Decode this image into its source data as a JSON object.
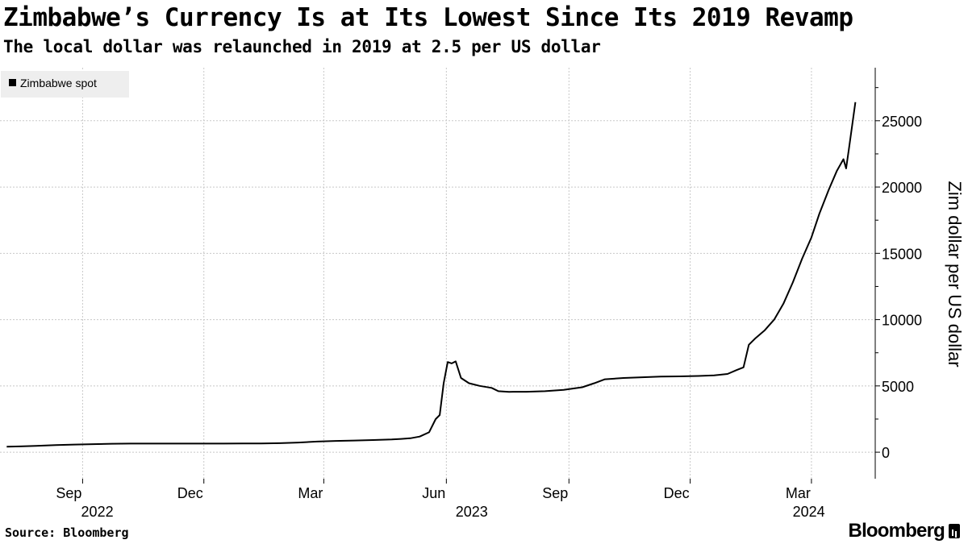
{
  "title": "Zimbabwe’s Currency Is at Its Lowest Since Its 2019 Revamp",
  "subtitle": "The local dollar was relaunched in 2019 at 2.5 per US dollar",
  "source": "Source: Bloomberg",
  "brand": "Bloomberg",
  "chart_data": {
    "type": "line",
    "ylabel": "Zim dollar per US dollar",
    "ylim": [
      -2000,
      29000
    ],
    "yticks": [
      0,
      5000,
      10000,
      15000,
      20000,
      25000
    ],
    "grid": true,
    "legend_position": "top-left",
    "x_tick_labels": [
      {
        "date": "2022-09-01",
        "label": "Sep"
      },
      {
        "date": "2022-12-01",
        "label": "Dec"
      },
      {
        "date": "2023-03-01",
        "label": "Mar"
      },
      {
        "date": "2023-06-01",
        "label": "Jun"
      },
      {
        "date": "2023-09-01",
        "label": "Sep"
      },
      {
        "date": "2023-12-01",
        "label": "Dec"
      },
      {
        "date": "2024-03-01",
        "label": "Mar"
      }
    ],
    "year_labels": [
      {
        "date": "2022-09-12",
        "label": "2022"
      },
      {
        "date": "2023-06-20",
        "label": "2023"
      },
      {
        "date": "2024-02-28",
        "label": "2024"
      }
    ],
    "series": [
      {
        "name": "Zimbabwe spot",
        "color": "#000000",
        "points": [
          [
            "2022-07-06",
            420
          ],
          [
            "2022-07-16",
            440
          ],
          [
            "2022-07-28",
            480
          ],
          [
            "2022-08-12",
            540
          ],
          [
            "2022-08-26",
            580
          ],
          [
            "2022-09-09",
            610
          ],
          [
            "2022-09-23",
            640
          ],
          [
            "2022-10-07",
            650
          ],
          [
            "2022-10-21",
            650
          ],
          [
            "2022-11-04",
            650
          ],
          [
            "2022-11-18",
            650
          ],
          [
            "2022-12-02",
            650
          ],
          [
            "2022-12-16",
            650
          ],
          [
            "2022-12-30",
            655
          ],
          [
            "2023-01-13",
            660
          ],
          [
            "2023-01-27",
            680
          ],
          [
            "2023-02-10",
            730
          ],
          [
            "2023-02-24",
            800
          ],
          [
            "2023-03-10",
            850
          ],
          [
            "2023-03-24",
            880
          ],
          [
            "2023-04-07",
            920
          ],
          [
            "2023-04-21",
            960
          ],
          [
            "2023-04-28",
            1000
          ],
          [
            "2023-05-05",
            1050
          ],
          [
            "2023-05-12",
            1180
          ],
          [
            "2023-05-19",
            1500
          ],
          [
            "2023-05-24",
            2500
          ],
          [
            "2023-05-27",
            2800
          ],
          [
            "2023-05-30",
            5200
          ],
          [
            "2023-06-02",
            6800
          ],
          [
            "2023-06-05",
            6700
          ],
          [
            "2023-06-08",
            6850
          ],
          [
            "2023-06-12",
            5600
          ],
          [
            "2023-06-18",
            5200
          ],
          [
            "2023-06-26",
            5000
          ],
          [
            "2023-07-05",
            4850
          ],
          [
            "2023-07-10",
            4600
          ],
          [
            "2023-07-18",
            4550
          ],
          [
            "2023-07-31",
            4560
          ],
          [
            "2023-08-14",
            4600
          ],
          [
            "2023-08-28",
            4700
          ],
          [
            "2023-09-11",
            4900
          ],
          [
            "2023-09-20",
            5200
          ],
          [
            "2023-09-28",
            5500
          ],
          [
            "2023-10-12",
            5600
          ],
          [
            "2023-10-26",
            5650
          ],
          [
            "2023-11-09",
            5700
          ],
          [
            "2023-11-23",
            5720
          ],
          [
            "2023-12-07",
            5750
          ],
          [
            "2023-12-19",
            5800
          ],
          [
            "2023-12-29",
            5900
          ],
          [
            "2024-01-05",
            6200
          ],
          [
            "2024-01-10",
            6400
          ],
          [
            "2024-01-14",
            8100
          ],
          [
            "2024-01-19",
            8600
          ],
          [
            "2024-01-26",
            9200
          ],
          [
            "2024-02-02",
            10000
          ],
          [
            "2024-02-09",
            11200
          ],
          [
            "2024-02-16",
            12800
          ],
          [
            "2024-02-23",
            14600
          ],
          [
            "2024-03-01",
            16200
          ],
          [
            "2024-03-07",
            18000
          ],
          [
            "2024-03-14",
            19800
          ],
          [
            "2024-03-20",
            21200
          ],
          [
            "2024-03-25",
            22100
          ],
          [
            "2024-03-27",
            21400
          ],
          [
            "2024-03-29",
            22800
          ],
          [
            "2024-04-03",
            26400
          ]
        ]
      }
    ]
  }
}
